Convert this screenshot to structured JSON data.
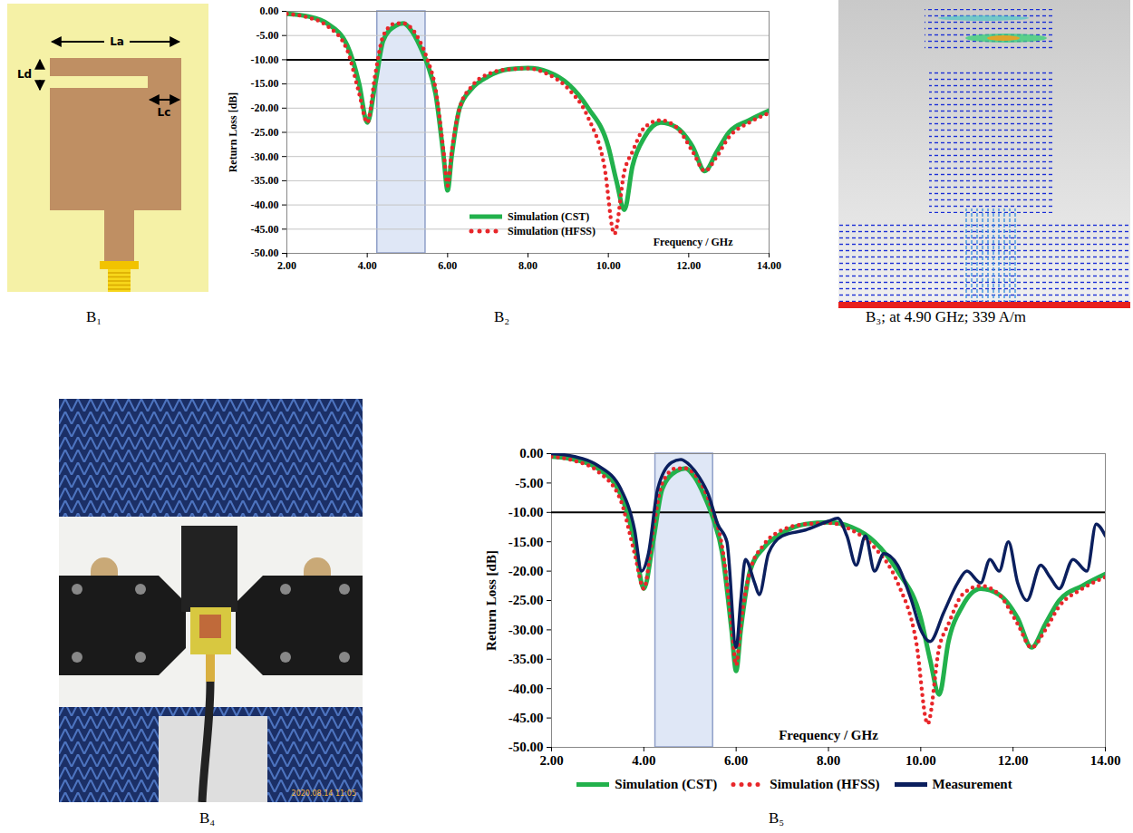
{
  "panels": {
    "B1": {
      "caption": "B₁",
      "dimension_labels": [
        "La",
        "Ld",
        "Lc"
      ]
    },
    "B3": {
      "caption": "B₃; at 4.90 GHz; 339 A/m"
    },
    "B4": {
      "caption": "B₄",
      "timestamp": "2020.08.14 11:05"
    }
  },
  "chart_data": [
    {
      "type": "line",
      "caption": "B₂",
      "x_label": "Frequency / GHz",
      "y_label": "Return Loss [dB]",
      "xlim": [
        2,
        14
      ],
      "ylim": [
        -50,
        0
      ],
      "xticks": [
        {
          "value": 2,
          "label": "2.00"
        },
        {
          "value": 4,
          "label": "4.00"
        },
        {
          "value": 6,
          "label": "6.00"
        },
        {
          "value": 8,
          "label": "8.00"
        },
        {
          "value": 10,
          "label": "10.00"
        },
        {
          "value": 12,
          "label": "12.00"
        },
        {
          "value": 14,
          "label": "14.00"
        }
      ],
      "yticks": [
        {
          "value": 0,
          "label": "0.00"
        },
        {
          "value": -5,
          "label": "-5.00"
        },
        {
          "value": -10,
          "label": "-10.00"
        },
        {
          "value": -15,
          "label": "-15.00"
        },
        {
          "value": -20,
          "label": "-20.00"
        },
        {
          "value": -25,
          "label": "-25.00"
        },
        {
          "value": -30,
          "label": "-30.00"
        },
        {
          "value": -35,
          "label": "-35.00"
        },
        {
          "value": -40,
          "label": "-40.00"
        },
        {
          "value": -45,
          "label": "-45.00"
        },
        {
          "value": -50,
          "label": "-50.00"
        }
      ],
      "grid": true,
      "legend": "bottom",
      "shaded_band": [
        4.25,
        5.45
      ],
      "reference_line": -10,
      "series": [
        {
          "name": "Simulation (CST)",
          "color": "#22b14c",
          "line_style": "solid",
          "x": [
            2,
            2.5,
            3,
            3.5,
            3.8,
            4,
            4.2,
            4.4,
            4.7,
            4.9,
            5.1,
            5.3,
            5.5,
            5.7,
            5.9,
            6,
            6.1,
            6.3,
            6.6,
            7,
            7.5,
            8,
            8.5,
            9,
            9.5,
            10,
            10.2,
            10.4,
            10.6,
            10.9,
            11.3,
            11.7,
            12.1,
            12.4,
            12.7,
            13,
            13.5,
            14
          ],
          "values": [
            -0.5,
            -1,
            -2.5,
            -7,
            -15,
            -23,
            -15,
            -6,
            -3,
            -2.5,
            -4,
            -7,
            -11,
            -17,
            -30,
            -37,
            -30,
            -20,
            -16,
            -13.5,
            -12,
            -11.7,
            -12.5,
            -15,
            -20,
            -28,
            -35,
            -41,
            -32,
            -26,
            -23,
            -24,
            -28,
            -33,
            -29,
            -25,
            -22.5,
            -20.5
          ]
        },
        {
          "name": "Simulation (HFSS)",
          "color": "#e8262a",
          "line_style": "dotted",
          "x": [
            2,
            2.5,
            3,
            3.5,
            3.8,
            4,
            4.2,
            4.4,
            4.7,
            4.9,
            5.1,
            5.3,
            5.5,
            5.7,
            5.9,
            6,
            6.1,
            6.3,
            6.6,
            7,
            7.5,
            8,
            8.5,
            9,
            9.5,
            9.9,
            10.15,
            10.4,
            10.6,
            10.9,
            11.3,
            11.7,
            12.1,
            12.4,
            12.7,
            13,
            13.5,
            14
          ],
          "values": [
            -0.5,
            -1.2,
            -3,
            -8,
            -17,
            -23,
            -13,
            -5,
            -2.5,
            -2.5,
            -3.5,
            -6,
            -10,
            -16,
            -29,
            -36,
            -29,
            -20,
            -15.5,
            -13,
            -12,
            -11.8,
            -13,
            -16,
            -22,
            -32,
            -46,
            -33,
            -29,
            -24,
            -22.5,
            -24,
            -29,
            -33,
            -30,
            -26,
            -23,
            -21
          ]
        }
      ]
    },
    {
      "type": "line",
      "caption": "B₅",
      "x_label": "Frequency / GHz",
      "y_label": "Return Loss [dB]",
      "xlim": [
        2,
        14
      ],
      "ylim": [
        -50,
        0
      ],
      "xticks": [
        {
          "value": 2,
          "label": "2.00"
        },
        {
          "value": 4,
          "label": "4.00"
        },
        {
          "value": 6,
          "label": "6.00"
        },
        {
          "value": 8,
          "label": "8.00"
        },
        {
          "value": 10,
          "label": "10.00"
        },
        {
          "value": 12,
          "label": "12.00"
        },
        {
          "value": 14,
          "label": "14.00"
        }
      ],
      "yticks": [
        {
          "value": 0,
          "label": "0.00"
        },
        {
          "value": -5,
          "label": "-5.00"
        },
        {
          "value": -10,
          "label": "-10.00"
        },
        {
          "value": -15,
          "label": "-15.00"
        },
        {
          "value": -20,
          "label": "-20.00"
        },
        {
          "value": -25,
          "label": "-25.00"
        },
        {
          "value": -30,
          "label": "-30.00"
        },
        {
          "value": -35,
          "label": "-35.00"
        },
        {
          "value": -40,
          "label": "-40.00"
        },
        {
          "value": -45,
          "label": "-45.00"
        },
        {
          "value": -50,
          "label": "-50.00"
        }
      ],
      "grid": false,
      "legend": "bottom",
      "shaded_band": [
        4.25,
        5.5
      ],
      "reference_line": -10,
      "series": [
        {
          "name": "Simulation (CST)",
          "color": "#22b14c",
          "line_style": "solid",
          "x": [
            2,
            2.5,
            3,
            3.5,
            3.8,
            4,
            4.2,
            4.4,
            4.7,
            4.9,
            5.1,
            5.3,
            5.5,
            5.7,
            5.9,
            6,
            6.1,
            6.3,
            6.6,
            7,
            7.5,
            8,
            8.5,
            9,
            9.5,
            10,
            10.2,
            10.4,
            10.6,
            10.9,
            11.3,
            11.7,
            12.1,
            12.4,
            12.7,
            13,
            13.5,
            14
          ],
          "values": [
            -0.5,
            -1,
            -2.5,
            -7,
            -15,
            -23,
            -15,
            -6,
            -3,
            -2.5,
            -4,
            -7,
            -11,
            -17,
            -30,
            -37,
            -30,
            -20,
            -16,
            -13.5,
            -12,
            -11.7,
            -12.5,
            -15,
            -20,
            -28,
            -35,
            -41,
            -32,
            -26,
            -23,
            -24,
            -28,
            -33,
            -29,
            -25,
            -22.5,
            -20.5
          ]
        },
        {
          "name": "Simulation (HFSS)",
          "color": "#e8262a",
          "line_style": "dotted",
          "x": [
            2,
            2.5,
            3,
            3.5,
            3.8,
            4,
            4.2,
            4.4,
            4.7,
            4.9,
            5.1,
            5.3,
            5.5,
            5.7,
            5.9,
            6,
            6.1,
            6.3,
            6.6,
            7,
            7.5,
            8,
            8.5,
            9,
            9.5,
            9.9,
            10.15,
            10.4,
            10.6,
            10.9,
            11.3,
            11.7,
            12.1,
            12.4,
            12.7,
            13,
            13.5,
            14
          ],
          "values": [
            -0.5,
            -1.2,
            -3,
            -8,
            -17,
            -23,
            -13,
            -5,
            -2.5,
            -2.5,
            -3.5,
            -6,
            -10,
            -16,
            -29,
            -36,
            -29,
            -20,
            -15.5,
            -13,
            -12,
            -11.8,
            -13,
            -16,
            -22,
            -32,
            -46,
            -33,
            -29,
            -24,
            -22.5,
            -24,
            -29,
            -33,
            -30,
            -26,
            -23,
            -21
          ]
        },
        {
          "name": "Measurement",
          "color": "#0b1f5e",
          "line_style": "solid",
          "x": [
            2,
            2.5,
            3,
            3.5,
            3.8,
            3.95,
            4.1,
            4.3,
            4.6,
            4.8,
            5,
            5.2,
            5.4,
            5.6,
            5.8,
            6,
            6.1,
            6.2,
            6.4,
            6.5,
            6.7,
            7,
            7.5,
            8,
            8.2,
            8.4,
            8.6,
            8.8,
            9,
            9.2,
            9.5,
            9.8,
            10,
            10.2,
            10.5,
            10.8,
            11,
            11.3,
            11.5,
            11.7,
            11.9,
            12.1,
            12.3,
            12.6,
            12.8,
            13,
            13.3,
            13.6,
            13.8,
            14
          ],
          "values": [
            0,
            -0.5,
            -2,
            -6,
            -13,
            -20,
            -17,
            -6,
            -1.5,
            -1,
            -2,
            -4,
            -7,
            -12,
            -15,
            -33,
            -25,
            -18,
            -22,
            -24,
            -17,
            -14,
            -13,
            -11.5,
            -11,
            -14,
            -19,
            -14,
            -20,
            -17,
            -19,
            -25,
            -30,
            -32,
            -27,
            -22,
            -20,
            -22,
            -18,
            -20,
            -15,
            -22,
            -25,
            -19,
            -21,
            -23,
            -18,
            -20,
            -12,
            -14
          ]
        }
      ]
    }
  ]
}
